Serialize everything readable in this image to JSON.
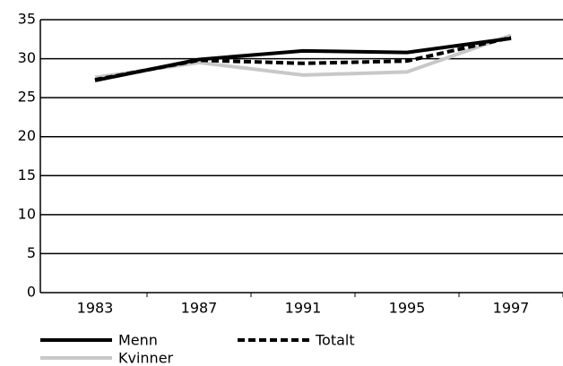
{
  "chart_data": {
    "type": "line",
    "categories": [
      "1983",
      "1987",
      "1991",
      "1995",
      "1997"
    ],
    "series": [
      {
        "name": "Menn",
        "color": "#000000",
        "dash": false,
        "values": [
          27.2,
          29.9,
          31.0,
          30.8,
          32.6
        ]
      },
      {
        "name": "Totalt",
        "color": "#000000",
        "dash": true,
        "values": [
          27.3,
          29.8,
          29.4,
          29.7,
          32.7
        ]
      },
      {
        "name": "Kvinner",
        "color": "#c8c8c8",
        "dash": false,
        "values": [
          27.6,
          29.5,
          27.9,
          28.3,
          33.0
        ]
      }
    ],
    "ylim": [
      0,
      35
    ],
    "yticks": [
      0,
      5,
      10,
      15,
      20,
      25,
      30,
      35
    ],
    "grid": true
  }
}
